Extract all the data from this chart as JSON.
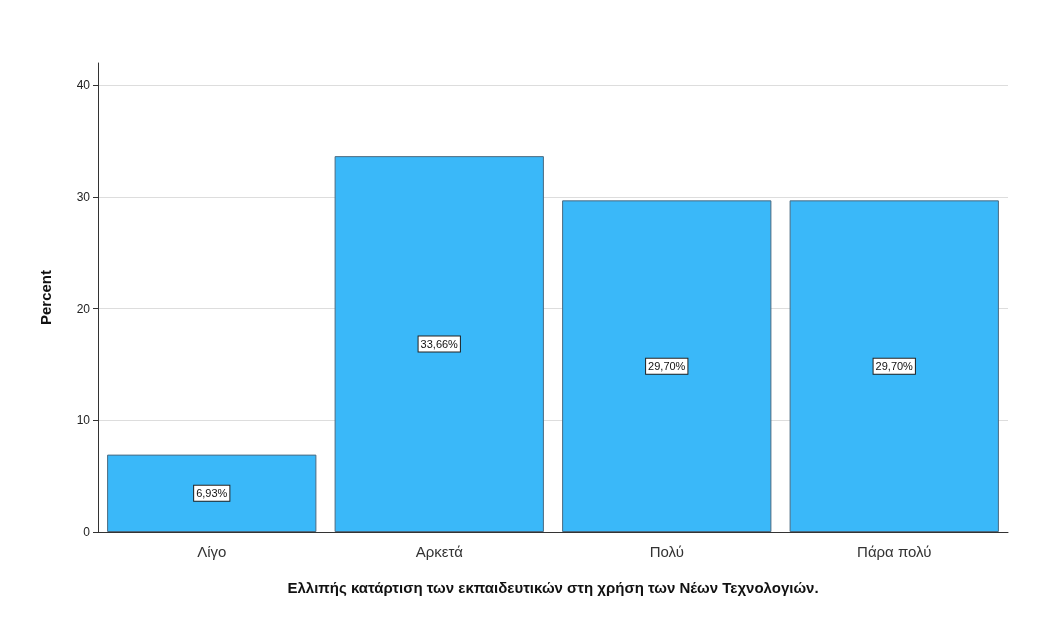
{
  "chart_data": {
    "type": "bar",
    "xlabel": "Ελλιπής κατάρτιση των εκπαιδευτικών στη χρήση των Νέων Τεχνολογιών.",
    "ylabel": "Percent",
    "categories": [
      "Λίγο",
      "Αρκετά",
      "Πολύ",
      "Πάρα πολύ"
    ],
    "values": [
      6.93,
      33.66,
      29.7,
      29.7
    ],
    "value_labels": [
      "6,93%",
      "33,66%",
      "29,70%",
      "29,70%"
    ],
    "color": "#3ab8f9",
    "ylim": [
      0,
      42
    ],
    "yticks": [
      0,
      10,
      20,
      30,
      40
    ],
    "grid": "y"
  }
}
